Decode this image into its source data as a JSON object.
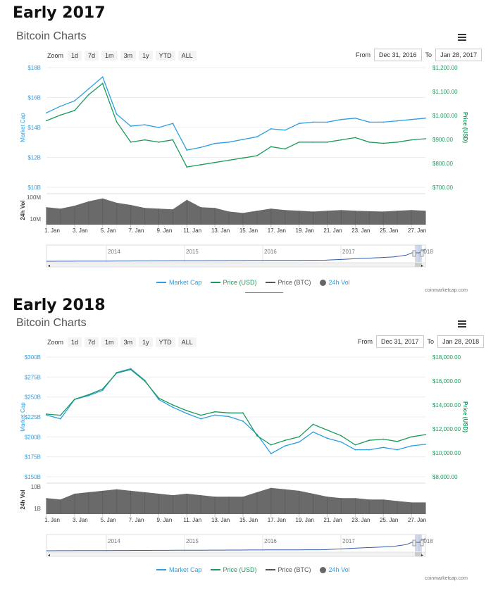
{
  "panels": [
    {
      "heading": "Early 2017",
      "title": "Bitcoin Charts",
      "zoom_label": "Zoom",
      "zoom_buttons": [
        "1d",
        "7d",
        "1m",
        "3m",
        "1y",
        "YTD",
        "ALL"
      ],
      "from_label": "From",
      "from_value": "Dec 31, 2016",
      "to_label": "To",
      "to_value": "Jan 28, 2017",
      "credit": "coinmarketcap.com",
      "legend": [
        {
          "name": "Market Cap",
          "color": "#2d9fe0",
          "kind": "line"
        },
        {
          "name": "Price (USD)",
          "color": "#1a9a5c",
          "kind": "line"
        },
        {
          "name": "Price (BTC)",
          "color": "#555555",
          "kind": "line"
        },
        {
          "name": "24h Vol",
          "color": "#666666",
          "kind": "dot"
        }
      ]
    },
    {
      "heading": "Early 2018",
      "title": "Bitcoin Charts",
      "zoom_label": "Zoom",
      "zoom_buttons": [
        "1d",
        "7d",
        "1m",
        "3m",
        "1y",
        "YTD",
        "ALL"
      ],
      "from_label": "From",
      "from_value": "Dec 31, 2017",
      "to_label": "To",
      "to_value": "Jan 28, 2018",
      "credit": "coinmarketcap.com",
      "legend": [
        {
          "name": "Market Cap",
          "color": "#2d9fe0",
          "kind": "line"
        },
        {
          "name": "Price (USD)",
          "color": "#1a9a5c",
          "kind": "line"
        },
        {
          "name": "Price (BTC)",
          "color": "#555555",
          "kind": "line"
        },
        {
          "name": "24h Vol",
          "color": "#666666",
          "kind": "dot"
        }
      ]
    }
  ],
  "chart_data": [
    {
      "type": "line",
      "title": "Bitcoin Charts",
      "x": [
        "Jan 1",
        "Jan 2",
        "Jan 3",
        "Jan 4",
        "Jan 5",
        "Jan 6",
        "Jan 7",
        "Jan 8",
        "Jan 9",
        "Jan 10",
        "Jan 11",
        "Jan 12",
        "Jan 13",
        "Jan 14",
        "Jan 15",
        "Jan 16",
        "Jan 17",
        "Jan 18",
        "Jan 19",
        "Jan 20",
        "Jan 21",
        "Jan 22",
        "Jan 23",
        "Jan 24",
        "Jan 25",
        "Jan 26",
        "Jan 27",
        "Jan 28"
      ],
      "x_tick_labels": [
        "1. Jan",
        "3. Jan",
        "5. Jan",
        "7. Jan",
        "9. Jan",
        "11. Jan",
        "13. Jan",
        "15. Jan",
        "17. Jan",
        "19. Jan",
        "21. Jan",
        "23. Jan",
        "25. Jan",
        "27. Jan"
      ],
      "series": [
        {
          "name": "Market Cap",
          "axis": "left",
          "unit": "USD",
          "values": [
            15600000000.0,
            16100000000.0,
            16500000000.0,
            17400000000.0,
            18300000000.0,
            15500000000.0,
            14600000000.0,
            14700000000.0,
            14500000000.0,
            14800000000.0,
            12800000000.0,
            13000000000.0,
            13300000000.0,
            13400000000.0,
            13600000000.0,
            13800000000.0,
            14400000000.0,
            14300000000.0,
            14800000000.0,
            14900000000.0,
            14900000000.0,
            15100000000.0,
            15200000000.0,
            14900000000.0,
            14900000000.0,
            15000000000.0,
            15100000000.0,
            15200000000.0
          ]
        },
        {
          "name": "Price (USD)",
          "axis": "right",
          "unit": "USD",
          "values": [
            995,
            1020,
            1040,
            1110,
            1160,
            990,
            900,
            910,
            900,
            910,
            790,
            800,
            810,
            820,
            830,
            840,
            880,
            870,
            900,
            900,
            900,
            910,
            920,
            900,
            895,
            900,
            910,
            915
          ]
        }
      ],
      "volume": {
        "name": "24h Vol",
        "values": [
          120000000.0,
          110000000.0,
          130000000.0,
          160000000.0,
          180000000.0,
          150000000.0,
          135000000.0,
          115000000.0,
          110000000.0,
          105000000.0,
          170000000.0,
          120000000.0,
          115000000.0,
          90000000.0,
          80000000.0,
          95000000.0,
          110000000.0,
          100000000.0,
          95000000.0,
          90000000.0,
          95000000.0,
          100000000.0,
          95000000.0,
          92000000.0,
          90000000.0,
          95000000.0,
          100000000.0,
          95000000.0
        ]
      },
      "y_left": {
        "label": "Market Cap",
        "ticks": [
          "$10B",
          "$12B",
          "$14B",
          "$16B",
          "$18B"
        ],
        "ylim": [
          10000000000.0,
          19000000000.0
        ]
      },
      "y_right": {
        "label": "Price (USD)",
        "ticks": [
          "$700.00",
          "$800.00",
          "$900.00",
          "$1,000.00",
          "$1,100.00",
          "$1,200.00"
        ],
        "ylim": [
          700,
          1230
        ]
      },
      "y_vol": {
        "label": "24h Vol",
        "ticks": [
          "10M",
          "100M"
        ]
      },
      "navigator_years": [
        "2014",
        "2015",
        "2016",
        "2017",
        "2018"
      ]
    },
    {
      "type": "line",
      "title": "Bitcoin Charts",
      "x": [
        "Jan 1",
        "Jan 2",
        "Jan 3",
        "Jan 4",
        "Jan 5",
        "Jan 6",
        "Jan 7",
        "Jan 8",
        "Jan 9",
        "Jan 10",
        "Jan 11",
        "Jan 12",
        "Jan 13",
        "Jan 14",
        "Jan 15",
        "Jan 16",
        "Jan 17",
        "Jan 18",
        "Jan 19",
        "Jan 20",
        "Jan 21",
        "Jan 22",
        "Jan 23",
        "Jan 24",
        "Jan 25",
        "Jan 26",
        "Jan 27",
        "Jan 28"
      ],
      "x_tick_labels": [
        "1. Jan",
        "3. Jan",
        "5. Jan",
        "7. Jan",
        "9. Jan",
        "11. Jan",
        "13. Jan",
        "15. Jan",
        "17. Jan",
        "19. Jan",
        "21. Jan",
        "23. Jan",
        "25. Jan",
        "27. Jan"
      ],
      "series": [
        {
          "name": "Market Cap",
          "axis": "left",
          "unit": "USD",
          "values": [
            230000000000.0,
            225000000000.0,
            250000000000.0,
            255000000000.0,
            262000000000.0,
            285000000000.0,
            290000000000.0,
            275000000000.0,
            250000000000.0,
            240000000000.0,
            232000000000.0,
            225000000000.0,
            230000000000.0,
            228000000000.0,
            222000000000.0,
            205000000000.0,
            180000000000.0,
            190000000000.0,
            195000000000.0,
            208000000000.0,
            200000000000.0,
            195000000000.0,
            185000000000.0,
            185000000000.0,
            188000000000.0,
            185000000000.0,
            190000000000.0,
            192000000000.0
          ]
        },
        {
          "name": "Price (USD)",
          "axis": "right",
          "unit": "USD",
          "values": [
            13500,
            13400,
            14800,
            15200,
            15700,
            17100,
            17400,
            16400,
            14900,
            14300,
            13800,
            13400,
            13700,
            13600,
            13600,
            11600,
            10800,
            11200,
            11500,
            12600,
            12100,
            11600,
            10800,
            11200,
            11300,
            11100,
            11500,
            11700
          ]
        }
      ],
      "volume": {
        "name": "24h Vol",
        "values": [
          11000000000.0,
          10000000000.0,
          14000000000.0,
          15000000000.0,
          16000000000.0,
          17000000000.0,
          16000000000.0,
          15000000000.0,
          14000000000.0,
          13000000000.0,
          14000000000.0,
          13000000000.0,
          12000000000.0,
          12000000000.0,
          12000000000.0,
          15000000000.0,
          18000000000.0,
          17000000000.0,
          16000000000.0,
          14000000000.0,
          12000000000.0,
          11000000000.0,
          11000000000.0,
          10000000000.0,
          10000000000.0,
          9000000000.0,
          8000000000.0,
          8000000000.0
        ]
      },
      "y_left": {
        "label": "Market Cap",
        "ticks": [
          "$150B",
          "$175B",
          "$200B",
          "$225B",
          "$250B",
          "$275B",
          "$300B"
        ],
        "ylim": [
          150000000000.0,
          305000000000.0
        ]
      },
      "y_right": {
        "label": "Price (USD)",
        "ticks": [
          "$8,000.00",
          "$10,000.00",
          "$12,000.00",
          "$14,000.00",
          "$16,000.00",
          "$18,000.00"
        ],
        "ylim": [
          8000,
          18500
        ]
      },
      "y_vol": {
        "label": "24h Vol",
        "ticks": [
          "1B",
          "10B"
        ]
      },
      "navigator_years": [
        "2014",
        "2015",
        "2016",
        "2017",
        "2018"
      ]
    }
  ]
}
